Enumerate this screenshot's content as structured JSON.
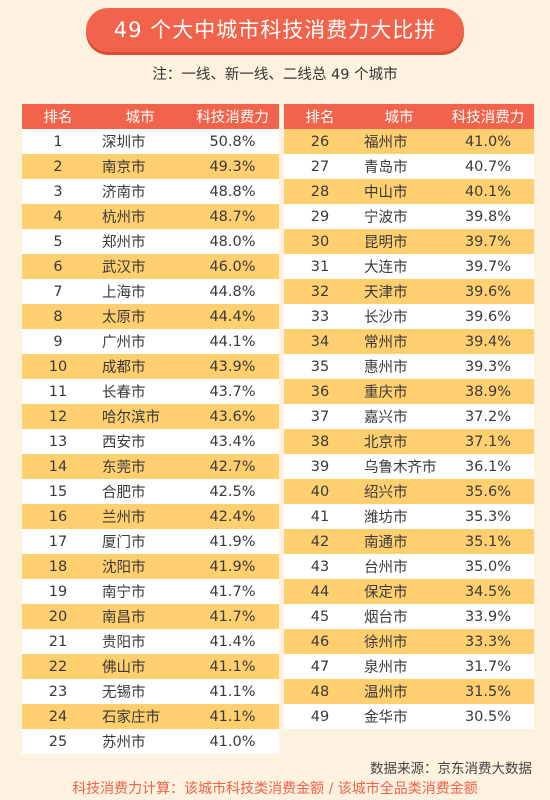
{
  "title": "49 个大中城市科技消费力大比拼",
  "note": "注：一线、新一线、二线总 49 个城市",
  "headers": [
    "排名",
    "城市",
    "科技消费力"
  ],
  "source": "数据来源：京东消费大数据",
  "formula": "科技消费力计算：该城市科技类消费金额 / 该城市全品类消费金额",
  "colors": {
    "accent": "#f1634a",
    "row_highlight": "#ffcf70",
    "background": "#fdf1df"
  },
  "chart_data": {
    "type": "table",
    "columns": [
      "排名",
      "城市",
      "科技消费力"
    ],
    "rows": [
      [
        1,
        "深圳市",
        "50.8%"
      ],
      [
        2,
        "南京市",
        "49.3%"
      ],
      [
        3,
        "济南市",
        "48.8%"
      ],
      [
        4,
        "杭州市",
        "48.7%"
      ],
      [
        5,
        "郑州市",
        "48.0%"
      ],
      [
        6,
        "武汉市",
        "46.0%"
      ],
      [
        7,
        "上海市",
        "44.8%"
      ],
      [
        8,
        "太原市",
        "44.4%"
      ],
      [
        9,
        "广州市",
        "44.1%"
      ],
      [
        10,
        "成都市",
        "43.9%"
      ],
      [
        11,
        "长春市",
        "43.7%"
      ],
      [
        12,
        "哈尔滨市",
        "43.6%"
      ],
      [
        13,
        "西安市",
        "43.4%"
      ],
      [
        14,
        "东莞市",
        "42.7%"
      ],
      [
        15,
        "合肥市",
        "42.5%"
      ],
      [
        16,
        "兰州市",
        "42.4%"
      ],
      [
        17,
        "厦门市",
        "41.9%"
      ],
      [
        18,
        "沈阳市",
        "41.9%"
      ],
      [
        19,
        "南宁市",
        "41.7%"
      ],
      [
        20,
        "南昌市",
        "41.7%"
      ],
      [
        21,
        "贵阳市",
        "41.4%"
      ],
      [
        22,
        "佛山市",
        "41.1%"
      ],
      [
        23,
        "无锡市",
        "41.1%"
      ],
      [
        24,
        "石家庄市",
        "41.1%"
      ],
      [
        25,
        "苏州市",
        "41.0%"
      ],
      [
        26,
        "福州市",
        "41.0%"
      ],
      [
        27,
        "青岛市",
        "40.7%"
      ],
      [
        28,
        "中山市",
        "40.1%"
      ],
      [
        29,
        "宁波市",
        "39.8%"
      ],
      [
        30,
        "昆明市",
        "39.7%"
      ],
      [
        31,
        "大连市",
        "39.7%"
      ],
      [
        32,
        "天津市",
        "39.6%"
      ],
      [
        33,
        "长沙市",
        "39.6%"
      ],
      [
        34,
        "常州市",
        "39.4%"
      ],
      [
        35,
        "惠州市",
        "39.3%"
      ],
      [
        36,
        "重庆市",
        "38.9%"
      ],
      [
        37,
        "嘉兴市",
        "37.2%"
      ],
      [
        38,
        "北京市",
        "37.1%"
      ],
      [
        39,
        "乌鲁木齐市",
        "36.1%"
      ],
      [
        40,
        "绍兴市",
        "35.6%"
      ],
      [
        41,
        "潍坊市",
        "35.3%"
      ],
      [
        42,
        "南通市",
        "35.1%"
      ],
      [
        43,
        "台州市",
        "35.0%"
      ],
      [
        44,
        "保定市",
        "34.5%"
      ],
      [
        45,
        "烟台市",
        "33.9%"
      ],
      [
        46,
        "徐州市",
        "33.3%"
      ],
      [
        47,
        "泉州市",
        "31.7%"
      ],
      [
        48,
        "温州市",
        "31.5%"
      ],
      [
        49,
        "金华市",
        "30.5%"
      ]
    ]
  }
}
